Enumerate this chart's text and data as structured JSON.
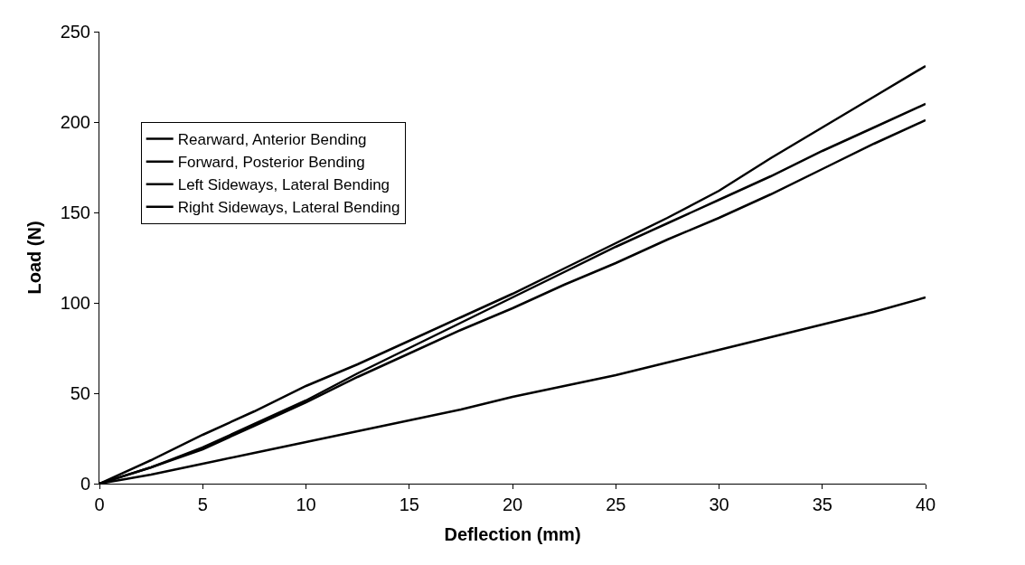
{
  "chart_data": {
    "type": "line",
    "xlabel": "Deflection (mm)",
    "ylabel": "Load (N)",
    "x": [
      0,
      2.5,
      5,
      7.5,
      10,
      12.5,
      15,
      17.5,
      20,
      22.5,
      25,
      27.5,
      30,
      32.5,
      35,
      37.5,
      40
    ],
    "series": [
      {
        "name": "Rearward, Anterior Bending",
        "color": "#000000",
        "values": [
          0,
          13,
          27,
          40,
          54,
          66,
          79,
          92,
          105,
          119,
          133,
          147,
          162,
          180,
          197,
          214,
          231
        ]
      },
      {
        "name": "Forward, Posterior Bending",
        "color": "#000000",
        "values": [
          0,
          9,
          20,
          33,
          46,
          61,
          75,
          89,
          103,
          117,
          131,
          144,
          157,
          170,
          184,
          197,
          210
        ]
      },
      {
        "name": "Left Sideways, Lateral Bending",
        "color": "#000000",
        "values": [
          0,
          9,
          19,
          32,
          45,
          59,
          72,
          85,
          97,
          110,
          122,
          135,
          147,
          160,
          174,
          188,
          201
        ]
      },
      {
        "name": "Right Sideways, Lateral Bending",
        "color": "#000000",
        "values": [
          0,
          5,
          11,
          17,
          23,
          29,
          35,
          41,
          48,
          54,
          60,
          67,
          74,
          81,
          88,
          95,
          103
        ]
      }
    ],
    "xlim": [
      0,
      40
    ],
    "xticks": [
      0,
      5,
      10,
      15,
      20,
      25,
      30,
      35,
      40
    ],
    "ylim": [
      0,
      250
    ],
    "yticks": [
      0,
      50,
      100,
      150,
      200,
      250
    ],
    "legend": "top left",
    "marker": "none",
    "line_style": "solid"
  }
}
